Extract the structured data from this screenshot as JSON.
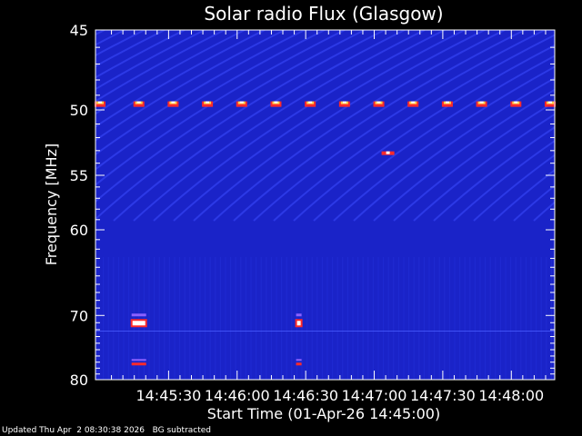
{
  "chart_data": {
    "type": "heatmap",
    "title": "Solar radio Flux (Glasgow)",
    "xlabel": "Start Time (01-Apr-26 14:45:00)",
    "ylabel": "Frequency [MHz]",
    "x_start": "14:45:00",
    "x_ticks": [
      "14:45:30",
      "14:46:00",
      "14:46:30",
      "14:47:00",
      "14:47:30",
      "14:48:00"
    ],
    "x_tick_seconds": [
      30,
      60,
      90,
      120,
      150,
      180
    ],
    "x_range_seconds": [
      0,
      197
    ],
    "y_ticks": [
      45,
      50,
      55,
      60,
      70,
      80
    ],
    "y_range": [
      45,
      80
    ],
    "y_scale": "reciprocal",
    "grid": false,
    "colors": {
      "background": "#1a23c8",
      "streak": "#3d4cff",
      "hot": "#ff2a2a",
      "peak": "#ffffff",
      "warm": "#ffd24a"
    },
    "features": [
      {
        "name": "periodic-50MHz-spikes",
        "freq_mhz": 49.6,
        "times_s": [
          0,
          17,
          32,
          47,
          62,
          77,
          92,
          107,
          122,
          137,
          152,
          167,
          182,
          197
        ]
      },
      {
        "name": "burst-53MHz",
        "freq_mhz": 53.2,
        "time_s": 126
      },
      {
        "name": "burst-71MHz-a",
        "freq_mhz": 71.0,
        "time_s": 17
      },
      {
        "name": "burst-71MHz-b",
        "freq_mhz": 71.0,
        "time_s": 87
      }
    ]
  },
  "footer": {
    "updated": "Updated Thu Apr  2 08:30:38 2026",
    "note": "BG subtracted"
  }
}
